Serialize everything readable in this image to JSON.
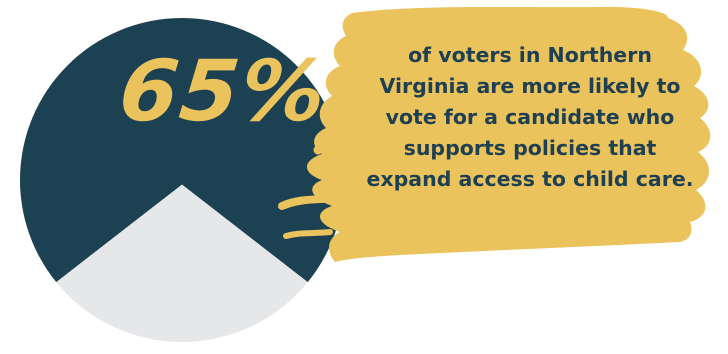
{
  "chart_data": {
    "type": "pie",
    "categories": [
      "more likely",
      "other"
    ],
    "values": [
      65,
      35
    ],
    "title": "",
    "colors": {
      "more likely": "#1c4153",
      "other": "#e6e7e9"
    },
    "legend": "none"
  },
  "callout": {
    "stat": "65%",
    "lines": [
      "of voters in Northern",
      "Virginia are more likely to",
      "vote for a candidate who",
      "supports policies that",
      "expand access to child care."
    ]
  },
  "colors": {
    "highlight": "#ebc35c",
    "text": "#1f4052",
    "background": "#ffffff"
  }
}
